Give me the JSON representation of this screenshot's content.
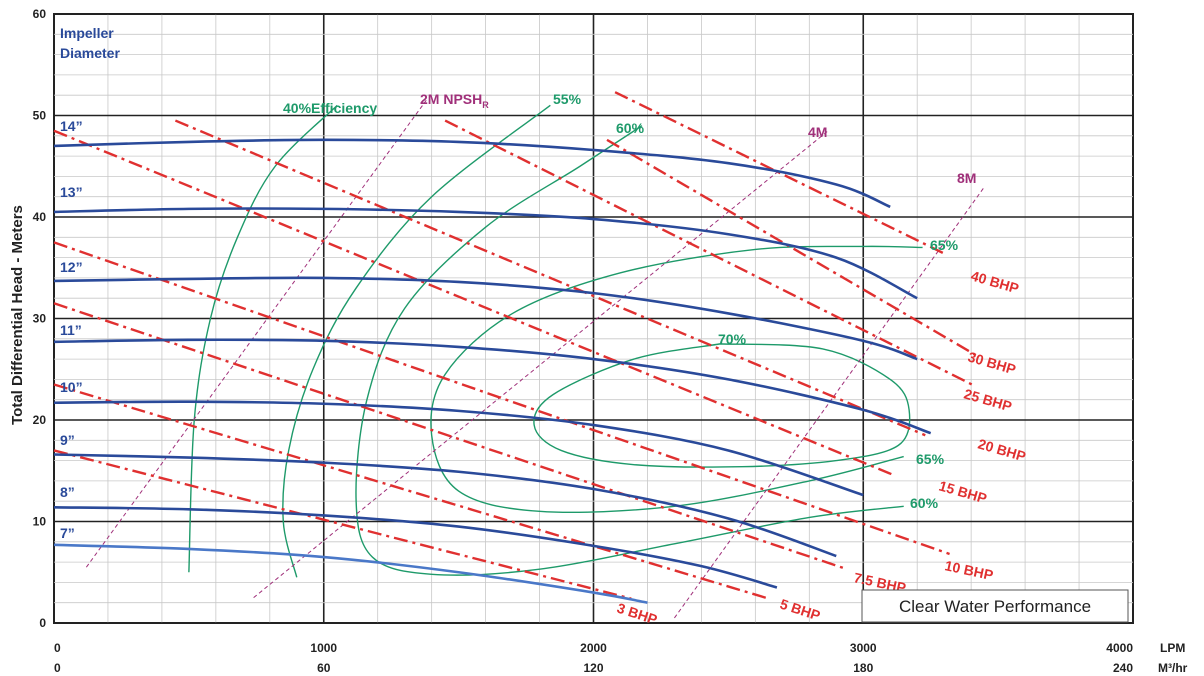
{
  "chart_data": {
    "type": "line",
    "title": "",
    "ylabel": "Total Differential Head - Meters",
    "xlabel_primary": "LPM",
    "xlabel_secondary": "M³/hr",
    "xlim": [
      0,
      4000
    ],
    "ylim": [
      0,
      60
    ],
    "grid": true,
    "x_ticks": [
      "0",
      "1000",
      "2000",
      "3000",
      "4000"
    ],
    "x_ticks_secondary": [
      "0",
      "60",
      "120",
      "180",
      "240"
    ],
    "y_ticks": [
      "0",
      "10",
      "20",
      "30",
      "40",
      "50",
      "60"
    ],
    "x_unit_label": "LPM",
    "x2_unit_label": "M³/hr",
    "impeller_title": [
      "Impeller",
      "Diameter"
    ],
    "note": "Clear Water Performance",
    "impeller_curves": [
      {
        "name": "14”",
        "color": "#2a4a9a",
        "x": [
          0,
          500,
          1000,
          1500,
          2000,
          2500,
          2900,
          3100
        ],
        "y": [
          47,
          47.4,
          47.6,
          47.4,
          46.6,
          45.3,
          43.2,
          41
        ]
      },
      {
        "name": "13”",
        "color": "#2a4a9a",
        "x": [
          0,
          500,
          1000,
          1500,
          2000,
          2500,
          2900,
          3200
        ],
        "y": [
          40.5,
          40.8,
          40.8,
          40.5,
          39.8,
          38.3,
          36,
          32
        ]
      },
      {
        "name": "12”",
        "color": "#2a4a9a",
        "x": [
          0,
          500,
          1000,
          1500,
          2000,
          2500,
          3000,
          3200
        ],
        "y": [
          33.7,
          33.9,
          34,
          33.6,
          32.5,
          30.5,
          27.8,
          26
        ]
      },
      {
        "name": "11”",
        "color": "#2a4a9a",
        "x": [
          0,
          500,
          1000,
          1500,
          2000,
          2500,
          3000,
          3250
        ],
        "y": [
          27.7,
          27.9,
          27.8,
          27.2,
          26,
          24,
          21,
          18.7
        ]
      },
      {
        "name": "10”",
        "color": "#2a4a9a",
        "x": [
          0,
          500,
          1000,
          1500,
          2000,
          2500,
          3000
        ],
        "y": [
          21.7,
          21.8,
          21.6,
          20.9,
          19.5,
          17,
          12.6
        ]
      },
      {
        "name": "9”",
        "color": "#2a4a9a",
        "x": [
          0,
          500,
          1000,
          1500,
          2000,
          2500,
          2900
        ],
        "y": [
          16.6,
          16.3,
          15.8,
          14.9,
          13.2,
          10.3,
          6.6
        ]
      },
      {
        "name": "8”",
        "color": "#2a4a9a",
        "x": [
          0,
          500,
          1000,
          1500,
          2000,
          2400,
          2680
        ],
        "y": [
          11.4,
          11.2,
          10.6,
          9.5,
          7.6,
          5.6,
          3.5
        ]
      },
      {
        "name": "7”",
        "color": "#4a78c8",
        "x": [
          0,
          500,
          1000,
          1500,
          2000,
          2200
        ],
        "y": [
          7.7,
          7.3,
          6.5,
          5,
          3,
          2
        ]
      }
    ],
    "efficiency_curves": [
      {
        "name": "40%Efficiency",
        "color": "#1e9a6a",
        "x": [
          500,
          520,
          580,
          680,
          820,
          1050
        ],
        "y": [
          5,
          20,
          30,
          38,
          45,
          51
        ]
      },
      {
        "name": "55%",
        "color": "#1e9a6a",
        "x": [
          900,
          850,
          870,
          960,
          1120,
          1400,
          1840
        ],
        "y": [
          4.5,
          10,
          17,
          25,
          33,
          42,
          51
        ]
      },
      {
        "name": "60%",
        "color": "#1e9a6a",
        "x": [
          3150,
          2800,
          2300,
          1800,
          1400,
          1180,
          1120,
          1160,
          1300,
          1600,
          1950,
          2180
        ],
        "y": [
          11.5,
          10.4,
          7.8,
          5.3,
          4.8,
          6.5,
          12,
          22,
          31,
          39,
          45,
          49
        ]
      },
      {
        "name": "65%",
        "color": "#1e9a6a",
        "x": [
          3150,
          2800,
          2300,
          1800,
          1500,
          1400,
          1450,
          1700,
          2100,
          2600,
          3000,
          3220
        ],
        "y": [
          16.4,
          14,
          11.5,
          11,
          13,
          18.5,
          24.5,
          30.5,
          34.5,
          36.8,
          37.1,
          37
        ]
      },
      {
        "name": "70%",
        "color": "#1e9a6a",
        "x": [
          2470,
          2150,
          1850,
          1780,
          1880,
          2150,
          2550,
          2900,
          3130,
          3170,
          3100,
          2850,
          2470
        ],
        "y": [
          27.5,
          26,
          22.5,
          19.5,
          17,
          15.6,
          15.4,
          16,
          17.5,
          21,
          24,
          27,
          27.5
        ]
      }
    ],
    "npsh_curves": [
      {
        "name": "2M NPSH",
        "subscript": "R",
        "color": "#a0307a",
        "x": [
          120,
          1380
        ],
        "y": [
          5.5,
          51.5
        ]
      },
      {
        "name": "4M",
        "color": "#a0307a",
        "x": [
          740,
          2870
        ],
        "y": [
          2.5,
          48.5
        ]
      },
      {
        "name": "8M",
        "color": "#a0307a",
        "x": [
          2300,
          3450
        ],
        "y": [
          0.5,
          43
        ]
      }
    ],
    "bhp_curves": [
      {
        "name": "3 BHP",
        "color": "#e03030",
        "x": [
          0,
          2140
        ],
        "y": [
          17,
          2.4
        ]
      },
      {
        "name": "5 BHP",
        "color": "#e03030",
        "x": [
          0,
          2650
        ],
        "y": [
          23.5,
          2.4
        ]
      },
      {
        "name": "7.5 BHP",
        "color": "#e03030",
        "x": [
          0,
          2940
        ],
        "y": [
          31.5,
          5.3
        ]
      },
      {
        "name": "10 BHP",
        "color": "#e03030",
        "x": [
          0,
          3320
        ],
        "y": [
          37.5,
          6.8
        ]
      },
      {
        "name": "15 BHP",
        "color": "#e03030",
        "x": [
          0,
          3120
        ],
        "y": [
          48.5,
          14.5
        ]
      },
      {
        "name": "20 BHP",
        "color": "#e03030",
        "x": [
          450,
          3230
        ],
        "y": [
          49.5,
          18.5
        ]
      },
      {
        "name": "25 BHP",
        "color": "#e03030",
        "x": [
          1450,
          3410
        ],
        "y": [
          49.5,
          23.4
        ]
      },
      {
        "name": "30 BHP",
        "color": "#e03030",
        "x": [
          2050,
          3430
        ],
        "y": [
          47.6,
          26.2
        ]
      },
      {
        "name": "40 BHP",
        "color": "#e03030",
        "x": [
          2080,
          3300
        ],
        "y": [
          52.3,
          36.4
        ]
      }
    ]
  }
}
